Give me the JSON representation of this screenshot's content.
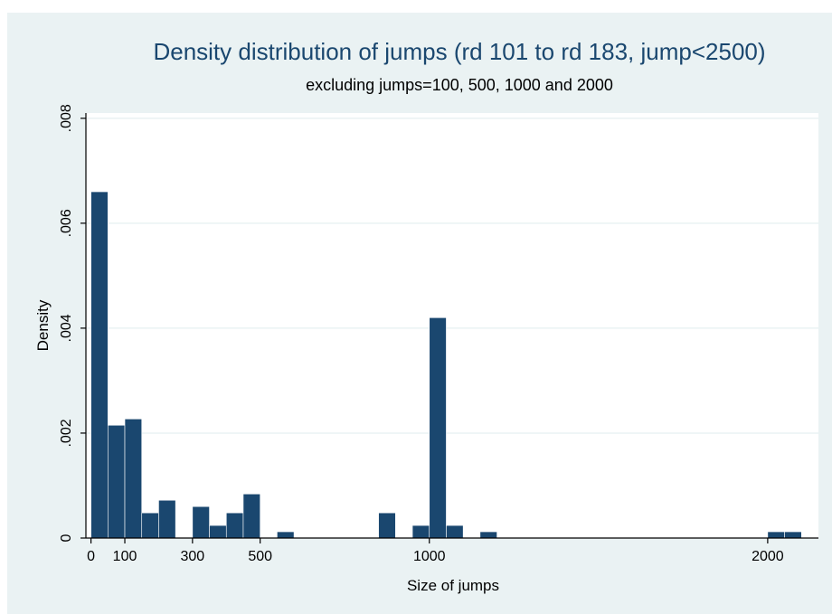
{
  "colors": {
    "background": "#eaf2f3",
    "plot_background": "#ffffff",
    "bar_fill": "#1a476f",
    "grid": "#eaf2f3",
    "title": "#1a476f"
  },
  "chart_data": {
    "type": "bar",
    "title": "Density distribution of jumps (rd 101 to rd 183, jump<2500)",
    "subtitle": "excluding jumps=100, 500, 1000 and 2000",
    "xlabel": "Size of jumps",
    "ylabel": "Density",
    "xlim": [
      -15,
      2150
    ],
    "ylim": [
      0,
      0.0081
    ],
    "x_ticks": [
      {
        "value": 0,
        "label": "0"
      },
      {
        "value": 100,
        "label": "100"
      },
      {
        "value": 300,
        "label": "300"
      },
      {
        "value": 500,
        "label": "500"
      },
      {
        "value": 1000,
        "label": "1000"
      },
      {
        "value": 2000,
        "label": "2000"
      }
    ],
    "y_ticks": [
      {
        "value": 0,
        "label": "0"
      },
      {
        "value": 0.002,
        "label": ".002"
      },
      {
        "value": 0.004,
        "label": ".004"
      },
      {
        "value": 0.006,
        "label": ".006"
      },
      {
        "value": 0.008,
        "label": ".008"
      }
    ],
    "grid": true,
    "bin_width": 50,
    "bins": [
      {
        "x0": 0,
        "x1": 50,
        "density": 0.0066
      },
      {
        "x0": 50,
        "x1": 100,
        "density": 0.00215
      },
      {
        "x0": 100,
        "x1": 150,
        "density": 0.00227
      },
      {
        "x0": 150,
        "x1": 200,
        "density": 0.00048
      },
      {
        "x0": 200,
        "x1": 250,
        "density": 0.00072
      },
      {
        "x0": 300,
        "x1": 350,
        "density": 0.0006
      },
      {
        "x0": 350,
        "x1": 400,
        "density": 0.00024
      },
      {
        "x0": 400,
        "x1": 450,
        "density": 0.00048
      },
      {
        "x0": 450,
        "x1": 500,
        "density": 0.00084
      },
      {
        "x0": 550,
        "x1": 600,
        "density": 0.00012
      },
      {
        "x0": 850,
        "x1": 900,
        "density": 0.00048
      },
      {
        "x0": 950,
        "x1": 1000,
        "density": 0.00024
      },
      {
        "x0": 1000,
        "x1": 1050,
        "density": 0.0042
      },
      {
        "x0": 1050,
        "x1": 1100,
        "density": 0.00024
      },
      {
        "x0": 1150,
        "x1": 1200,
        "density": 0.00012
      },
      {
        "x0": 2000,
        "x1": 2050,
        "density": 0.00012
      },
      {
        "x0": 2050,
        "x1": 2100,
        "density": 0.00012
      }
    ]
  }
}
